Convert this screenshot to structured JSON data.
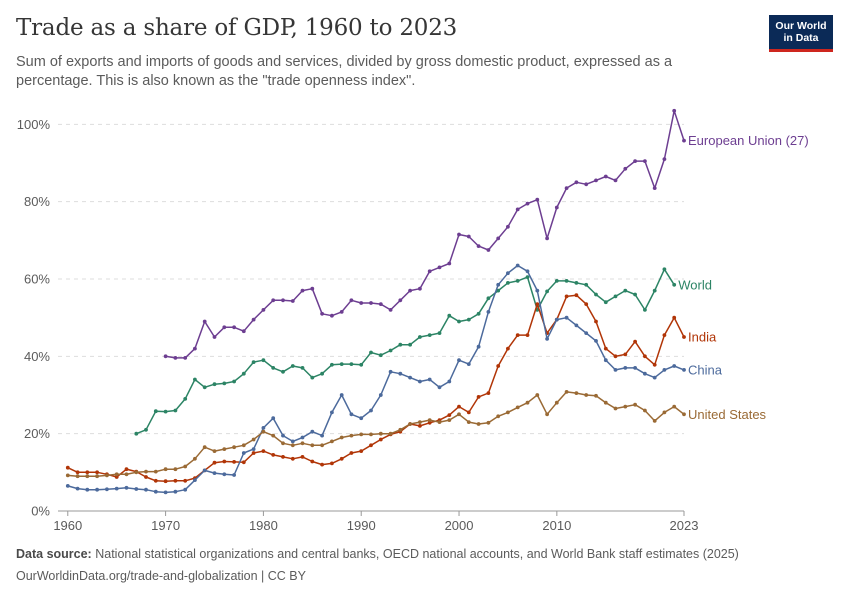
{
  "header": {
    "title": "Trade as a share of GDP, 1960 to 2023",
    "subtitle": "Sum of exports and imports of goods and services, divided by gross domestic product, expressed as a percentage. This is also known as the \"trade openness index\"."
  },
  "logo": {
    "line1": "Our World",
    "line2": "in Data"
  },
  "footer": {
    "source_label": "Data source:",
    "source_text": "National statistical organizations and central banks, OECD national accounts, and World Bank staff estimates (2025)",
    "credit": "OurWorldinData.org/trade-and-globalization | CC BY"
  },
  "chart_data": {
    "type": "line",
    "title": "Trade as a share of GDP, 1960 to 2023",
    "xlabel": "",
    "ylabel": "",
    "xlim": [
      1959,
      2023
    ],
    "ylim": [
      0,
      105
    ],
    "x_ticks": [
      "1960",
      "1970",
      "1980",
      "1990",
      "2000",
      "2010",
      "2023"
    ],
    "x_tick_values": [
      1960,
      1970,
      1980,
      1990,
      2000,
      2010,
      2023
    ],
    "y_ticks": [
      "0%",
      "20%",
      "40%",
      "60%",
      "80%",
      "100%"
    ],
    "y_tick_values": [
      0,
      20,
      40,
      60,
      80,
      100
    ],
    "grid": "horizontal dashed",
    "legend": "labels at line ends, right",
    "series": [
      {
        "name": "European Union (27)",
        "color": "#6d3e91",
        "start_year": 1970,
        "values": [
          40.0,
          39.6,
          39.6,
          42.0,
          49.0,
          45.0,
          47.5,
          47.5,
          46.5,
          49.5,
          52.0,
          54.5,
          54.5,
          54.3,
          57.0,
          57.5,
          51.0,
          50.5,
          51.5,
          54.5,
          53.8,
          53.8,
          53.5,
          52.0,
          54.5,
          57.0,
          57.5,
          62.0,
          63.0,
          64.0,
          71.5,
          71.0,
          68.5,
          67.5,
          70.5,
          73.5,
          78.0,
          79.5,
          80.5,
          70.5,
          78.5,
          83.5,
          85.0,
          84.5,
          85.5,
          86.5,
          85.5,
          88.5,
          90.5,
          90.5,
          83.5,
          91.0,
          103.5,
          95.8
        ]
      },
      {
        "name": "World",
        "color": "#2c8465",
        "start_year": 1967,
        "values": [
          20.0,
          21.0,
          25.8,
          25.7,
          26.0,
          29.0,
          34.0,
          32.0,
          32.8,
          33.0,
          33.5,
          35.5,
          38.5,
          39.0,
          37.0,
          36.0,
          37.5,
          37.0,
          34.5,
          35.5,
          37.8,
          38.0,
          38.0,
          37.8,
          41.0,
          40.3,
          41.5,
          43.0,
          43.0,
          45.0,
          45.5,
          46.0,
          50.5,
          49.0,
          49.5,
          51.0,
          55.0,
          57.0,
          59.0,
          59.5,
          60.5,
          52.0,
          56.8,
          59.5,
          59.5,
          59.0,
          58.5,
          56.0,
          54.0,
          55.5,
          57.0,
          56.0,
          52.0,
          57.0,
          62.5,
          58.5
        ]
      },
      {
        "name": "India",
        "color": "#b13507",
        "start_year": 1960,
        "values": [
          11.2,
          10.0,
          10.0,
          10.0,
          9.5,
          8.8,
          10.8,
          10.2,
          8.8,
          7.8,
          7.7,
          7.8,
          7.8,
          8.5,
          10.5,
          12.5,
          12.8,
          12.7,
          12.6,
          15.0,
          15.5,
          14.5,
          14.0,
          13.5,
          14.0,
          12.8,
          12.0,
          12.3,
          13.5,
          15.0,
          15.5,
          17.0,
          18.5,
          19.8,
          20.5,
          22.5,
          22.0,
          22.8,
          23.5,
          24.8,
          27.0,
          25.5,
          29.5,
          30.5,
          37.5,
          42.0,
          45.5,
          45.5,
          53.5,
          46.0,
          49.5,
          55.5,
          55.8,
          53.5,
          49.0,
          42.0,
          40.0,
          40.5,
          43.8,
          40.0,
          37.8,
          45.5,
          50.0,
          45.0
        ]
      },
      {
        "name": "China",
        "color": "#4c6a9c",
        "start_year": 1960,
        "values": [
          6.5,
          5.8,
          5.5,
          5.5,
          5.6,
          5.8,
          6.0,
          5.7,
          5.5,
          5.0,
          4.8,
          5.0,
          5.5,
          8.0,
          10.5,
          9.8,
          9.5,
          9.3,
          15.0,
          16.0,
          21.5,
          24.0,
          19.5,
          18.0,
          19.0,
          20.5,
          19.5,
          25.5,
          30.0,
          25.0,
          24.0,
          26.0,
          30.0,
          36.0,
          35.5,
          34.5,
          33.5,
          34.0,
          32.0,
          33.5,
          39.0,
          38.0,
          42.5,
          51.5,
          58.5,
          61.5,
          63.5,
          62.0,
          57.0,
          44.5,
          49.5,
          50.0,
          48.0,
          46.0,
          44.0,
          39.0,
          36.5,
          37.0,
          37.0,
          35.5,
          34.5,
          36.5,
          37.5,
          36.5
        ]
      },
      {
        "name": "United States",
        "color": "#9a6a35",
        "start_year": 1960,
        "values": [
          9.2,
          9.0,
          9.0,
          9.0,
          9.2,
          9.5,
          9.5,
          10.0,
          10.2,
          10.2,
          10.8,
          10.8,
          11.5,
          13.5,
          16.5,
          15.5,
          16.0,
          16.5,
          17.0,
          18.5,
          20.5,
          19.5,
          17.5,
          17.0,
          17.5,
          17.0,
          17.0,
          18.0,
          19.0,
          19.5,
          19.8,
          19.8,
          20.0,
          20.0,
          21.0,
          22.5,
          23.0,
          23.5,
          23.0,
          23.5,
          25.0,
          23.0,
          22.5,
          22.8,
          24.5,
          25.5,
          26.8,
          28.0,
          30.0,
          25.0,
          28.0,
          30.8,
          30.5,
          30.0,
          29.8,
          28.0,
          26.5,
          27.0,
          27.5,
          26.0,
          23.3,
          25.5,
          27.0,
          25.0
        ]
      }
    ]
  }
}
